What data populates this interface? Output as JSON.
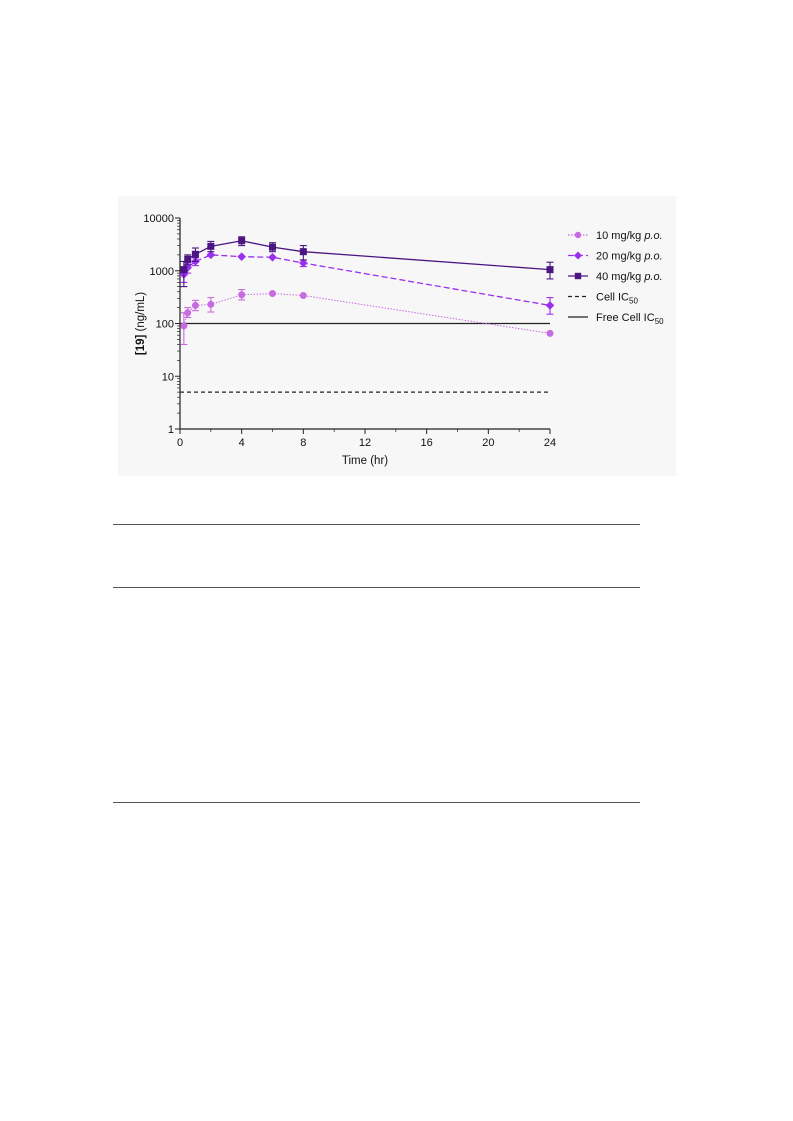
{
  "chart_data": {
    "type": "line",
    "xlabel": "Time (hr)",
    "ylabel_bold": "[19]",
    "ylabel_rest": " (ng/mL)",
    "xlim": [
      0,
      24
    ],
    "ylim": [
      1,
      10000
    ],
    "yscale": "log",
    "x_ticks": [
      0,
      4,
      8,
      12,
      16,
      20,
      24
    ],
    "y_ticks": [
      1,
      10,
      100,
      1000,
      10000
    ],
    "legend_position": "right",
    "grid": false,
    "series": [
      {
        "name": "10 mg/kg",
        "name_italic": "p.o.",
        "color": "#c86be0",
        "marker": "circle",
        "line_style": "dotted",
        "x": [
          0.25,
          0.5,
          1,
          2,
          4,
          6,
          8,
          24
        ],
        "y": [
          90,
          160,
          220,
          230,
          350,
          370,
          340,
          65
        ],
        "err_low": [
          40,
          130,
          175,
          165,
          280,
          null,
          null,
          null
        ],
        "err_high": [
          160,
          200,
          275,
          310,
          440,
          null,
          null,
          null
        ]
      },
      {
        "name": "20 mg/kg",
        "name_italic": "p.o.",
        "color": "#9b30f0",
        "marker": "diamond",
        "line_style": "dashed",
        "x": [
          0.25,
          0.5,
          1,
          2,
          4,
          6,
          8,
          24
        ],
        "y": [
          850,
          1150,
          1500,
          2000,
          1850,
          1800,
          1400,
          220
        ],
        "err_low": [
          600,
          900,
          1250,
          null,
          null,
          null,
          1200,
          150
        ],
        "err_high": [
          1100,
          1400,
          1750,
          null,
          null,
          null,
          1600,
          310
        ]
      },
      {
        "name": "40 mg/kg",
        "name_italic": "p.o.",
        "color": "#4b1582",
        "marker": "square",
        "line_style": "solid",
        "x": [
          0.25,
          0.5,
          1,
          2,
          4,
          6,
          8,
          24
        ],
        "y": [
          1050,
          1650,
          2050,
          2900,
          3700,
          2800,
          2300,
          1050
        ],
        "err_low": [
          500,
          1300,
          1500,
          2300,
          3000,
          2300,
          1600,
          700
        ],
        "err_high": [
          1500,
          2000,
          2700,
          3600,
          4400,
          3400,
          3000,
          1450
        ]
      }
    ],
    "reference_lines": [
      {
        "name": "Cell IC",
        "subscript": "50",
        "y": 5,
        "style": "dashed",
        "color": "#222222"
      },
      {
        "name": "Free Cell IC",
        "subscript": "50",
        "y": 100,
        "style": "solid",
        "color": "#222222"
      }
    ]
  }
}
